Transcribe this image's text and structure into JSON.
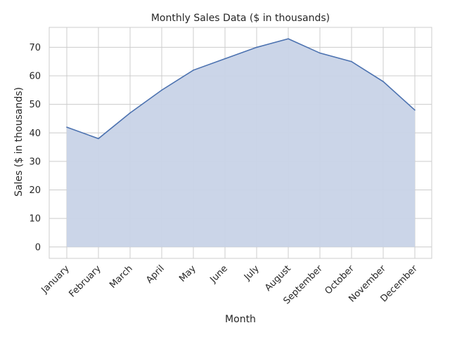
{
  "chart_data": {
    "type": "area",
    "title": "Monthly Sales Data ($ in thousands)",
    "xlabel": "Month",
    "ylabel": "Sales ($ in thousands)",
    "categories": [
      "January",
      "February",
      "March",
      "April",
      "May",
      "June",
      "July",
      "August",
      "September",
      "October",
      "November",
      "December"
    ],
    "series": [
      {
        "values": [
          42,
          38,
          47,
          55,
          62,
          66,
          70,
          73,
          68,
          65,
          58,
          48
        ]
      }
    ],
    "yticks": [
      0,
      10,
      20,
      30,
      40,
      50,
      60,
      70
    ],
    "ylim": [
      -4,
      77
    ],
    "grid": true,
    "colors": {
      "line": "#4c72b0",
      "fill": "#c8d3e7",
      "grid": "#cccccc",
      "frame": "#cccccc"
    }
  }
}
